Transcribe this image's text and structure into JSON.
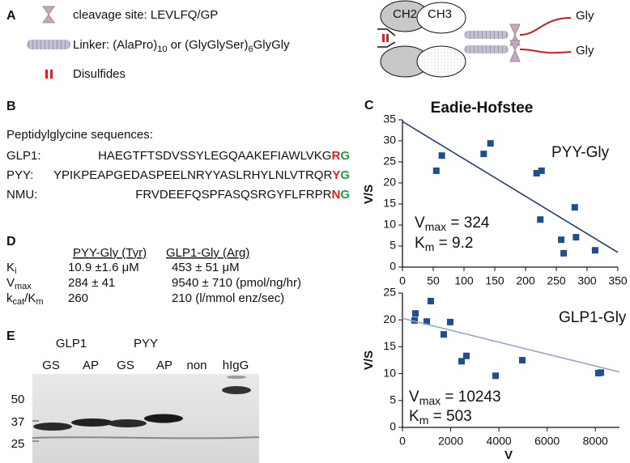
{
  "panels": {
    "a": "A",
    "b": "B",
    "c": "C",
    "d": "D",
    "e": "E"
  },
  "legend": {
    "cleavage": "cleavage site: LEVLFQ/GP",
    "linker": [
      "Linker: (AlaPro)",
      "10",
      " or (GlyGlySer)",
      "6",
      "GlyGly"
    ],
    "disulfides": "Disulfides"
  },
  "diagram": {
    "domains": [
      "CH2",
      "CH3"
    ],
    "termini": [
      "Gly",
      "Gly"
    ]
  },
  "sequences": {
    "title": "Peptidylglycine sequences:",
    "rows": [
      {
        "label": "GLP1:",
        "sequence": "HAEGTFTSDVSSYLEGQAAKEFIAWLVKG",
        "residue": "R",
        "glycine": "G"
      },
      {
        "label": "PYY:",
        "sequence": "YPIKPEAPGEDASPEELNRYYASLRHYLNLVTRQR",
        "residue": "Y",
        "glycine": "G"
      },
      {
        "label": "NMU:",
        "sequence": "FRVDEEFQSPFASQSRGYFLFRPR",
        "residue": "N",
        "glycine": "G"
      }
    ]
  },
  "kinetics": {
    "headers": [
      "PYY-Gly (Tyr)",
      "GLP1-Gly (Arg)"
    ],
    "rows": [
      {
        "label": [
          "K",
          "i"
        ],
        "pyy": "10.9 ±1.6 μM",
        "glp1": "453 ± 51 μM"
      },
      {
        "label": [
          "V",
          "max"
        ],
        "pyy": "284 ± 41",
        "glp1": "9540 ± 710 (pmol/ng/hr)"
      },
      {
        "label": [
          "k",
          "cat",
          "/K",
          "m"
        ],
        "pyy": "260",
        "glp1": "210 (l/mmol enz/sec)"
      }
    ]
  },
  "gel": {
    "groups": [
      "GLP1",
      "PYY"
    ],
    "lanes": [
      "GS",
      "AP",
      "GS",
      "AP",
      "non",
      "hIgG"
    ],
    "markers": [
      50,
      37,
      25
    ]
  },
  "chart_data": [
    {
      "type": "scatter",
      "title": "Eadie-Hofstee",
      "y_label": "V/S",
      "color": "#1f4e8c",
      "x": [
        55,
        64,
        132,
        143,
        218,
        226,
        224,
        280,
        258,
        262,
        282,
        313
      ],
      "values": [
        22.9,
        26.5,
        26.9,
        29.4,
        22.3,
        22.9,
        11.3,
        14.2,
        6.5,
        3.3,
        7.1,
        4.0
      ],
      "trendline": {
        "x": [
          0,
          350
        ],
        "values": [
          34.6,
          3.5
        ],
        "color": "#1f3f7a"
      },
      "xlim": [
        0,
        350
      ],
      "xticks": [
        0,
        50,
        100,
        150,
        200,
        250,
        300,
        350
      ],
      "ylim": [
        0,
        35
      ],
      "yticks": [
        0,
        5,
        10,
        15,
        20,
        25,
        30,
        35
      ],
      "annotations": {
        "label": "PYY-Gly",
        "vmax": [
          "V",
          "max",
          " = 324"
        ],
        "km": [
          "K",
          "m",
          "  = 9.2"
        ]
      }
    },
    {
      "type": "scatter",
      "y_label": "V/S",
      "x_label": "V",
      "color": "#1f4e8c",
      "x": [
        504,
        537,
        1007,
        1175,
        1713,
        1981,
        2451,
        2653,
        3862,
        4970,
        8126,
        8227
      ],
      "values": [
        19.9,
        21.2,
        19.7,
        23.5,
        17.3,
        19.6,
        12.3,
        13.3,
        9.6,
        12.5,
        10.1,
        10.2
      ],
      "trendline": {
        "x": [
          0,
          9000
        ],
        "values": [
          20.3,
          10.3
        ],
        "color": "#8fa6cc"
      },
      "xlim": [
        0,
        9000
      ],
      "xticks": [
        0,
        2000,
        4000,
        6000,
        8000
      ],
      "ylim": [
        0,
        25
      ],
      "yticks": [
        0,
        5,
        10,
        15,
        20,
        25
      ],
      "annotations": {
        "label": "GLP1-Gly",
        "vmax": [
          "V",
          "max",
          " = 10243"
        ],
        "km": [
          "K",
          "m",
          " = 503"
        ]
      }
    }
  ]
}
